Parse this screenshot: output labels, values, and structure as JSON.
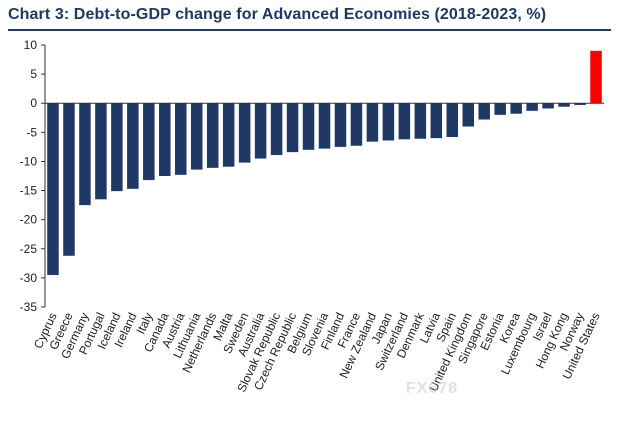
{
  "chart_data": {
    "type": "bar",
    "title": "Chart 3: Debt-to-GDP change for Advanced Economies (2018-2023, %)",
    "xlabel": "",
    "ylabel": "",
    "ylim": [
      -35,
      10
    ],
    "yticks": [
      10,
      5,
      0,
      -5,
      -10,
      -15,
      -20,
      -25,
      -30,
      -35
    ],
    "grid": false,
    "categories": [
      "Cyprus",
      "Greece",
      "Germany",
      "Portugal",
      "Iceland",
      "Ireland",
      "Italy",
      "Canada",
      "Austria",
      "Lithuania",
      "Netherlands",
      "Malta",
      "Sweden",
      "Australia",
      "Slovak Republic",
      "Czech Republic",
      "Belgium",
      "Slovenia",
      "Finland",
      "France",
      "New Zealand",
      "Japan",
      "Switzerland",
      "Denmark",
      "Latvia",
      "Spain",
      "United Kingdom",
      "Singapore",
      "Estonia",
      "Korea",
      "Luxembourg",
      "Israel",
      "Hong Kong",
      "Norway",
      "United States"
    ],
    "values": [
      -29.5,
      -26.2,
      -17.5,
      -16.5,
      -15.1,
      -14.7,
      -13.2,
      -12.5,
      -12.3,
      -11.4,
      -11.1,
      -10.9,
      -10.2,
      -9.5,
      -8.9,
      -8.4,
      -8.0,
      -7.8,
      -7.5,
      -7.3,
      -6.6,
      -6.4,
      -6.2,
      -6.1,
      -6.0,
      -5.8,
      -4.0,
      -2.8,
      -2.0,
      -1.8,
      -1.3,
      -0.9,
      -0.6,
      -0.3,
      9.0
    ],
    "colors": {
      "negative": "#1f3864",
      "highlight": "#ff0000",
      "axis": "#333333"
    },
    "highlight_category": "United States"
  },
  "watermark": "FX678"
}
